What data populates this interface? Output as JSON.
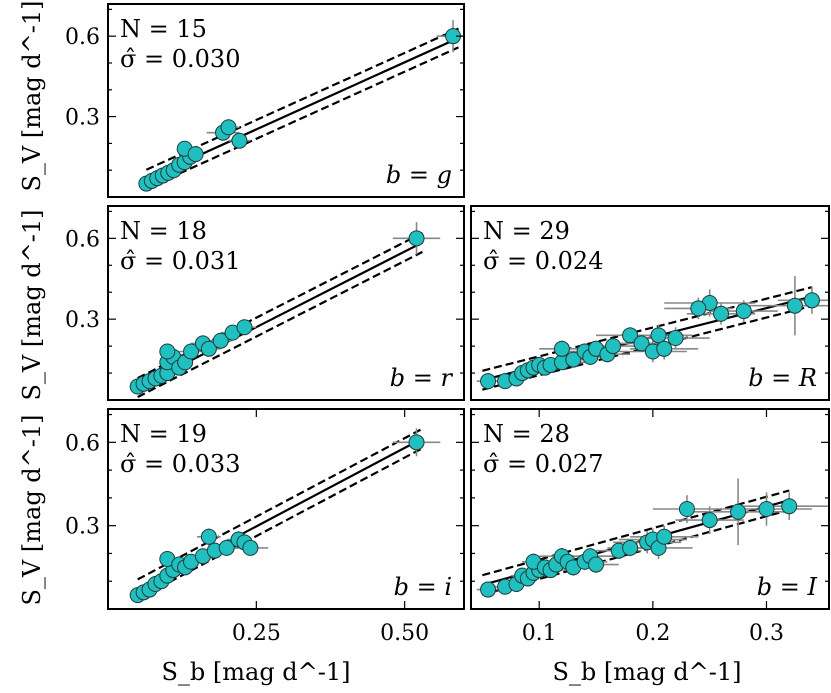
{
  "y_axis_label": "S_V [mag d^-1]",
  "x_axis_label": "S_b [mag d^-1]",
  "chart_data": [
    {
      "type": "scatter",
      "panel": "top-left",
      "band": "g",
      "ann_N": "N = 15",
      "ann_sigma": "σ̂ = 0.030",
      "ann_band": "b = g",
      "xlim": [
        0.0,
        0.65
      ],
      "ylim": [
        0.0,
        0.72
      ],
      "yticks": [
        0.3,
        0.6
      ],
      "ytick_labels": [
        "0.3",
        "0.6"
      ],
      "fit": {
        "slope": 0.924,
        "intercept": 0.002,
        "band": 0.035,
        "x_range": [
          0.07,
          0.64
        ]
      },
      "points": [
        {
          "x": 0.07,
          "y": 0.05,
          "xe": 0.01,
          "ye": 0.01
        },
        {
          "x": 0.08,
          "y": 0.06,
          "xe": 0.01,
          "ye": 0.01
        },
        {
          "x": 0.09,
          "y": 0.07,
          "xe": 0.01,
          "ye": 0.01
        },
        {
          "x": 0.1,
          "y": 0.08,
          "xe": 0.01,
          "ye": 0.01
        },
        {
          "x": 0.11,
          "y": 0.09,
          "xe": 0.01,
          "ye": 0.01
        },
        {
          "x": 0.12,
          "y": 0.1,
          "xe": 0.01,
          "ye": 0.01
        },
        {
          "x": 0.13,
          "y": 0.12,
          "xe": 0.01,
          "ye": 0.01
        },
        {
          "x": 0.14,
          "y": 0.13,
          "xe": 0.01,
          "ye": 0.01
        },
        {
          "x": 0.15,
          "y": 0.15,
          "xe": 0.01,
          "ye": 0.02
        },
        {
          "x": 0.14,
          "y": 0.18,
          "xe": 0.01,
          "ye": 0.02
        },
        {
          "x": 0.16,
          "y": 0.16,
          "xe": 0.01,
          "ye": 0.02
        },
        {
          "x": 0.21,
          "y": 0.24,
          "xe": 0.03,
          "ye": 0.03
        },
        {
          "x": 0.22,
          "y": 0.26,
          "xe": 0.02,
          "ye": 0.02
        },
        {
          "x": 0.24,
          "y": 0.21,
          "xe": 0.02,
          "ye": 0.02
        },
        {
          "x": 0.63,
          "y": 0.6,
          "xe": 0.03,
          "ye": 0.06
        }
      ]
    },
    {
      "type": "scatter",
      "panel": "middle-left",
      "band": "r",
      "ann_N": "N = 18",
      "ann_sigma": "σ̂ = 0.031",
      "ann_band": "b = r",
      "xlim": [
        0.0,
        0.6
      ],
      "ylim": [
        0.0,
        0.72
      ],
      "yticks": [
        0.3,
        0.6
      ],
      "ytick_labels": [
        "0.3",
        "0.6"
      ],
      "fit": {
        "slope": 1.122,
        "intercept": -0.01,
        "band": 0.035,
        "x_range": [
          0.05,
          0.53
        ]
      },
      "points": [
        {
          "x": 0.05,
          "y": 0.05,
          "xe": 0.01,
          "ye": 0.01
        },
        {
          "x": 0.06,
          "y": 0.06,
          "xe": 0.01,
          "ye": 0.01
        },
        {
          "x": 0.07,
          "y": 0.07,
          "xe": 0.01,
          "ye": 0.01
        },
        {
          "x": 0.08,
          "y": 0.08,
          "xe": 0.01,
          "ye": 0.01
        },
        {
          "x": 0.09,
          "y": 0.09,
          "xe": 0.01,
          "ye": 0.01
        },
        {
          "x": 0.1,
          "y": 0.1,
          "xe": 0.01,
          "ye": 0.02
        },
        {
          "x": 0.1,
          "y": 0.14,
          "xe": 0.01,
          "ye": 0.02
        },
        {
          "x": 0.11,
          "y": 0.16,
          "xe": 0.01,
          "ye": 0.02
        },
        {
          "x": 0.1,
          "y": 0.18,
          "xe": 0.01,
          "ye": 0.02
        },
        {
          "x": 0.12,
          "y": 0.12,
          "xe": 0.01,
          "ye": 0.02
        },
        {
          "x": 0.13,
          "y": 0.14,
          "xe": 0.01,
          "ye": 0.02
        },
        {
          "x": 0.14,
          "y": 0.18,
          "xe": 0.02,
          "ye": 0.03
        },
        {
          "x": 0.16,
          "y": 0.21,
          "xe": 0.02,
          "ye": 0.03
        },
        {
          "x": 0.17,
          "y": 0.19,
          "xe": 0.02,
          "ye": 0.02
        },
        {
          "x": 0.19,
          "y": 0.22,
          "xe": 0.02,
          "ye": 0.02
        },
        {
          "x": 0.21,
          "y": 0.25,
          "xe": 0.02,
          "ye": 0.02
        },
        {
          "x": 0.23,
          "y": 0.27,
          "xe": 0.02,
          "ye": 0.02
        },
        {
          "x": 0.52,
          "y": 0.6,
          "xe": 0.04,
          "ye": 0.06
        }
      ]
    },
    {
      "type": "scatter",
      "panel": "bottom-left",
      "band": "i",
      "ann_N": "N = 19",
      "ann_sigma": "σ̂ = 0.033",
      "ann_band": "b = i",
      "xlim": [
        0.0,
        0.6
      ],
      "ylim": [
        0.0,
        0.72
      ],
      "xticks": [
        0.25,
        0.5
      ],
      "xtick_labels": [
        "0.25",
        "0.50"
      ],
      "yticks": [
        0.3,
        0.6
      ],
      "ytick_labels": [
        "0.3",
        "0.6"
      ],
      "fit": {
        "slope": 1.13,
        "intercept": 0.015,
        "band": 0.035,
        "x_range": [
          0.05,
          0.53
        ]
      },
      "points": [
        {
          "x": 0.05,
          "y": 0.05,
          "xe": 0.01,
          "ye": 0.01
        },
        {
          "x": 0.06,
          "y": 0.06,
          "xe": 0.01,
          "ye": 0.01
        },
        {
          "x": 0.07,
          "y": 0.07,
          "xe": 0.01,
          "ye": 0.01
        },
        {
          "x": 0.08,
          "y": 0.09,
          "xe": 0.01,
          "ye": 0.01
        },
        {
          "x": 0.09,
          "y": 0.1,
          "xe": 0.01,
          "ye": 0.02
        },
        {
          "x": 0.1,
          "y": 0.12,
          "xe": 0.01,
          "ye": 0.02
        },
        {
          "x": 0.11,
          "y": 0.14,
          "xe": 0.01,
          "ye": 0.02
        },
        {
          "x": 0.1,
          "y": 0.18,
          "xe": 0.01,
          "ye": 0.02
        },
        {
          "x": 0.12,
          "y": 0.16,
          "xe": 0.01,
          "ye": 0.02
        },
        {
          "x": 0.13,
          "y": 0.15,
          "xe": 0.01,
          "ye": 0.02
        },
        {
          "x": 0.14,
          "y": 0.17,
          "xe": 0.01,
          "ye": 0.02
        },
        {
          "x": 0.16,
          "y": 0.19,
          "xe": 0.02,
          "ye": 0.02
        },
        {
          "x": 0.17,
          "y": 0.26,
          "xe": 0.02,
          "ye": 0.03
        },
        {
          "x": 0.18,
          "y": 0.21,
          "xe": 0.02,
          "ye": 0.02
        },
        {
          "x": 0.2,
          "y": 0.22,
          "xe": 0.02,
          "ye": 0.02
        },
        {
          "x": 0.22,
          "y": 0.25,
          "xe": 0.02,
          "ye": 0.03
        },
        {
          "x": 0.23,
          "y": 0.24,
          "xe": 0.02,
          "ye": 0.02
        },
        {
          "x": 0.24,
          "y": 0.22,
          "xe": 0.03,
          "ye": 0.02
        },
        {
          "x": 0.52,
          "y": 0.6,
          "xe": 0.04,
          "ye": 0.05
        }
      ]
    },
    {
      "type": "scatter",
      "panel": "middle-right",
      "band": "R",
      "ann_N": "N = 29",
      "ann_sigma": "σ̂ = 0.024",
      "ann_band": "b = R",
      "xlim": [
        0.04,
        0.355
      ],
      "ylim": [
        0.0,
        0.72
      ],
      "yticks": [
        0.3,
        0.6
      ],
      "fit": {
        "slope": 1.07,
        "intercept": 0.02,
        "band": 0.035,
        "x_range": [
          0.05,
          0.34
        ]
      },
      "points": [
        {
          "x": 0.055,
          "y": 0.07,
          "xe": 0.01,
          "ye": 0.02
        },
        {
          "x": 0.07,
          "y": 0.07,
          "xe": 0.01,
          "ye": 0.02
        },
        {
          "x": 0.08,
          "y": 0.08,
          "xe": 0.01,
          "ye": 0.02
        },
        {
          "x": 0.085,
          "y": 0.1,
          "xe": 0.01,
          "ye": 0.02
        },
        {
          "x": 0.09,
          "y": 0.11,
          "xe": 0.01,
          "ye": 0.02
        },
        {
          "x": 0.095,
          "y": 0.12,
          "xe": 0.01,
          "ye": 0.02
        },
        {
          "x": 0.1,
          "y": 0.13,
          "xe": 0.01,
          "ye": 0.02
        },
        {
          "x": 0.105,
          "y": 0.12,
          "xe": 0.01,
          "ye": 0.02
        },
        {
          "x": 0.11,
          "y": 0.13,
          "xe": 0.01,
          "ye": 0.02
        },
        {
          "x": 0.12,
          "y": 0.14,
          "xe": 0.02,
          "ye": 0.02
        },
        {
          "x": 0.12,
          "y": 0.19,
          "xe": 0.02,
          "ye": 0.03
        },
        {
          "x": 0.13,
          "y": 0.15,
          "xe": 0.02,
          "ye": 0.03
        },
        {
          "x": 0.14,
          "y": 0.18,
          "xe": 0.02,
          "ye": 0.03
        },
        {
          "x": 0.145,
          "y": 0.16,
          "xe": 0.02,
          "ye": 0.03
        },
        {
          "x": 0.15,
          "y": 0.19,
          "xe": 0.02,
          "ye": 0.03
        },
        {
          "x": 0.16,
          "y": 0.17,
          "xe": 0.02,
          "ye": 0.03
        },
        {
          "x": 0.165,
          "y": 0.2,
          "xe": 0.02,
          "ye": 0.03
        },
        {
          "x": 0.18,
          "y": 0.24,
          "xe": 0.03,
          "ye": 0.03
        },
        {
          "x": 0.19,
          "y": 0.21,
          "xe": 0.03,
          "ye": 0.03
        },
        {
          "x": 0.2,
          "y": 0.18,
          "xe": 0.03,
          "ye": 0.04
        },
        {
          "x": 0.205,
          "y": 0.24,
          "xe": 0.03,
          "ye": 0.04
        },
        {
          "x": 0.21,
          "y": 0.19,
          "xe": 0.03,
          "ye": 0.04
        },
        {
          "x": 0.22,
          "y": 0.23,
          "xe": 0.03,
          "ye": 0.04
        },
        {
          "x": 0.25,
          "y": 0.36,
          "xe": 0.04,
          "ye": 0.05
        },
        {
          "x": 0.24,
          "y": 0.34,
          "xe": 0.03,
          "ye": 0.04
        },
        {
          "x": 0.26,
          "y": 0.32,
          "xe": 0.03,
          "ye": 0.04
        },
        {
          "x": 0.28,
          "y": 0.33,
          "xe": 0.03,
          "ye": 0.04
        },
        {
          "x": 0.325,
          "y": 0.35,
          "xe": 0.04,
          "ye": 0.11
        },
        {
          "x": 0.34,
          "y": 0.37,
          "xe": 0.03,
          "ye": 0.05
        }
      ]
    },
    {
      "type": "scatter",
      "panel": "bottom-right",
      "band": "I",
      "ann_N": "N = 28",
      "ann_sigma": "σ̂ = 0.027",
      "ann_band": "b = I",
      "xlim": [
        0.04,
        0.355
      ],
      "ylim": [
        0.0,
        0.72
      ],
      "xticks": [
        0.1,
        0.2,
        0.3
      ],
      "xtick_labels": [
        "0.1",
        "0.2",
        "0.3"
      ],
      "yticks": [
        0.3,
        0.6
      ],
      "fit": {
        "slope": 1.13,
        "intercept": 0.03,
        "band": 0.035,
        "x_range": [
          0.05,
          0.32
        ]
      },
      "points": [
        {
          "x": 0.055,
          "y": 0.07,
          "xe": 0.01,
          "ye": 0.02
        },
        {
          "x": 0.07,
          "y": 0.08,
          "xe": 0.01,
          "ye": 0.02
        },
        {
          "x": 0.08,
          "y": 0.09,
          "xe": 0.01,
          "ye": 0.02
        },
        {
          "x": 0.085,
          "y": 0.12,
          "xe": 0.01,
          "ye": 0.02
        },
        {
          "x": 0.09,
          "y": 0.11,
          "xe": 0.01,
          "ye": 0.02
        },
        {
          "x": 0.095,
          "y": 0.13,
          "xe": 0.01,
          "ye": 0.02
        },
        {
          "x": 0.1,
          "y": 0.14,
          "xe": 0.01,
          "ye": 0.02
        },
        {
          "x": 0.095,
          "y": 0.17,
          "xe": 0.01,
          "ye": 0.03
        },
        {
          "x": 0.105,
          "y": 0.15,
          "xe": 0.01,
          "ye": 0.02
        },
        {
          "x": 0.11,
          "y": 0.14,
          "xe": 0.02,
          "ye": 0.02
        },
        {
          "x": 0.115,
          "y": 0.16,
          "xe": 0.02,
          "ye": 0.02
        },
        {
          "x": 0.12,
          "y": 0.19,
          "xe": 0.02,
          "ye": 0.03
        },
        {
          "x": 0.125,
          "y": 0.17,
          "xe": 0.02,
          "ye": 0.03
        },
        {
          "x": 0.13,
          "y": 0.15,
          "xe": 0.02,
          "ye": 0.03
        },
        {
          "x": 0.14,
          "y": 0.17,
          "xe": 0.02,
          "ye": 0.03
        },
        {
          "x": 0.145,
          "y": 0.19,
          "xe": 0.02,
          "ye": 0.03
        },
        {
          "x": 0.15,
          "y": 0.16,
          "xe": 0.02,
          "ye": 0.03
        },
        {
          "x": 0.17,
          "y": 0.21,
          "xe": 0.02,
          "ye": 0.03
        },
        {
          "x": 0.18,
          "y": 0.22,
          "xe": 0.02,
          "ye": 0.03
        },
        {
          "x": 0.195,
          "y": 0.24,
          "xe": 0.03,
          "ye": 0.04
        },
        {
          "x": 0.2,
          "y": 0.25,
          "xe": 0.03,
          "ye": 0.04
        },
        {
          "x": 0.205,
          "y": 0.22,
          "xe": 0.03,
          "ye": 0.04
        },
        {
          "x": 0.21,
          "y": 0.26,
          "xe": 0.03,
          "ye": 0.04
        },
        {
          "x": 0.23,
          "y": 0.36,
          "xe": 0.03,
          "ye": 0.05
        },
        {
          "x": 0.25,
          "y": 0.32,
          "xe": 0.03,
          "ye": 0.05
        },
        {
          "x": 0.275,
          "y": 0.35,
          "xe": 0.04,
          "ye": 0.12
        },
        {
          "x": 0.3,
          "y": 0.36,
          "xe": 0.04,
          "ye": 0.06
        },
        {
          "x": 0.32,
          "y": 0.37,
          "xe": 0.04,
          "ye": 0.05
        }
      ]
    }
  ]
}
